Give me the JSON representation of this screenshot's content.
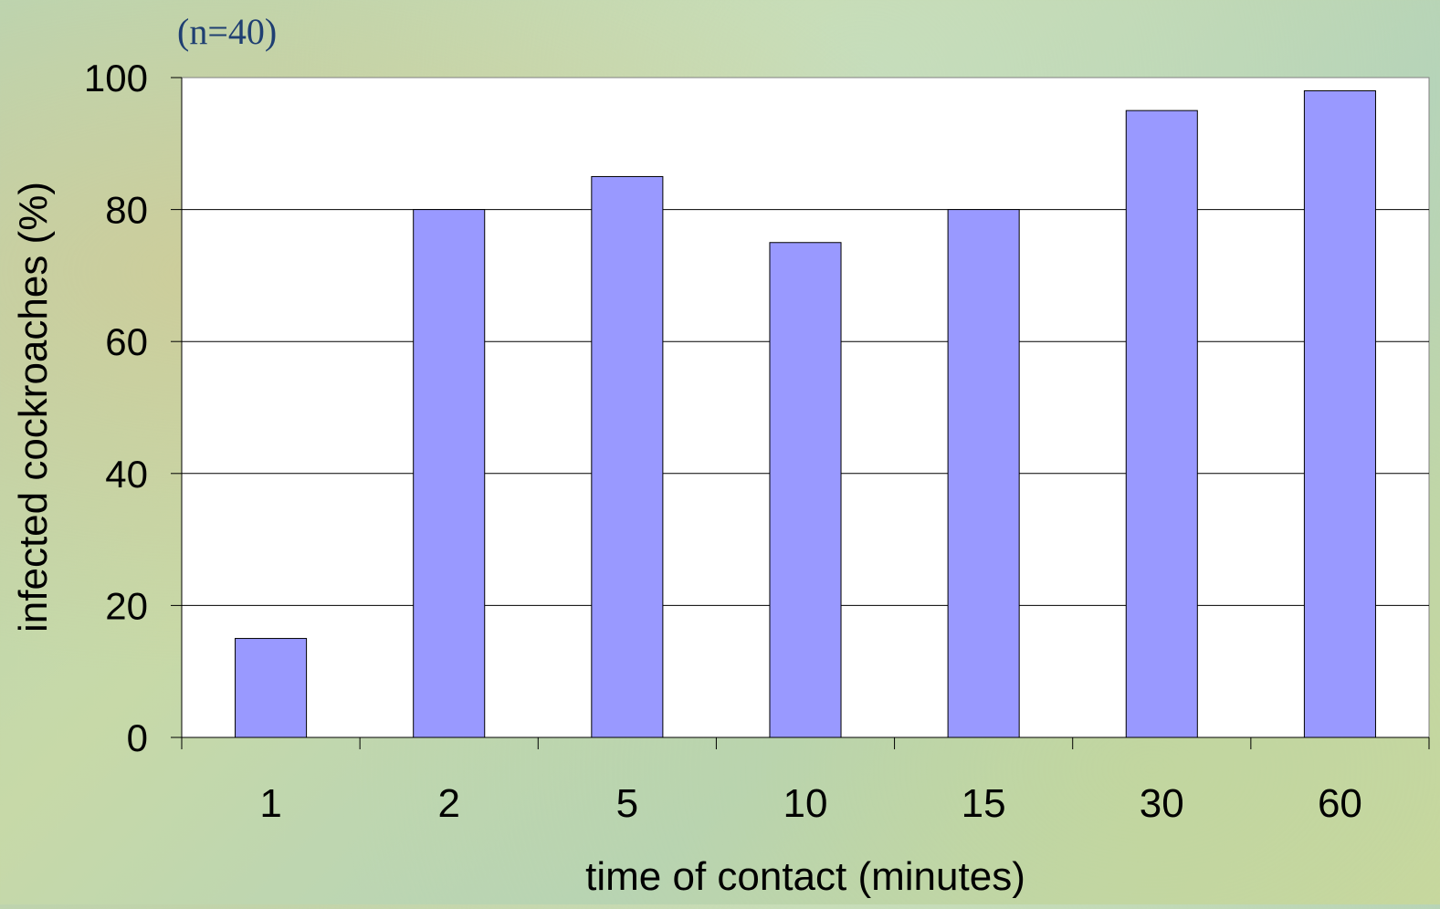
{
  "chart_data": {
    "type": "bar",
    "subtitle": "(n=40)",
    "xlabel": "time of contact (minutes)",
    "ylabel": "infected cockroaches (%)",
    "categories": [
      "1",
      "2",
      "5",
      "10",
      "15",
      "30",
      "60"
    ],
    "values": [
      15,
      80,
      85,
      75,
      80,
      95,
      98
    ],
    "ylim": [
      0,
      100
    ],
    "yticks": [
      0,
      20,
      40,
      60,
      80,
      100
    ],
    "grid": true,
    "legend": "none",
    "colors": {
      "bar_fill": "#9999ff",
      "bar_stroke": "#000000",
      "plot_background": "#ffffff",
      "gridline": "#000000",
      "text": "#000000",
      "subtitle": "#1f3f72"
    }
  }
}
